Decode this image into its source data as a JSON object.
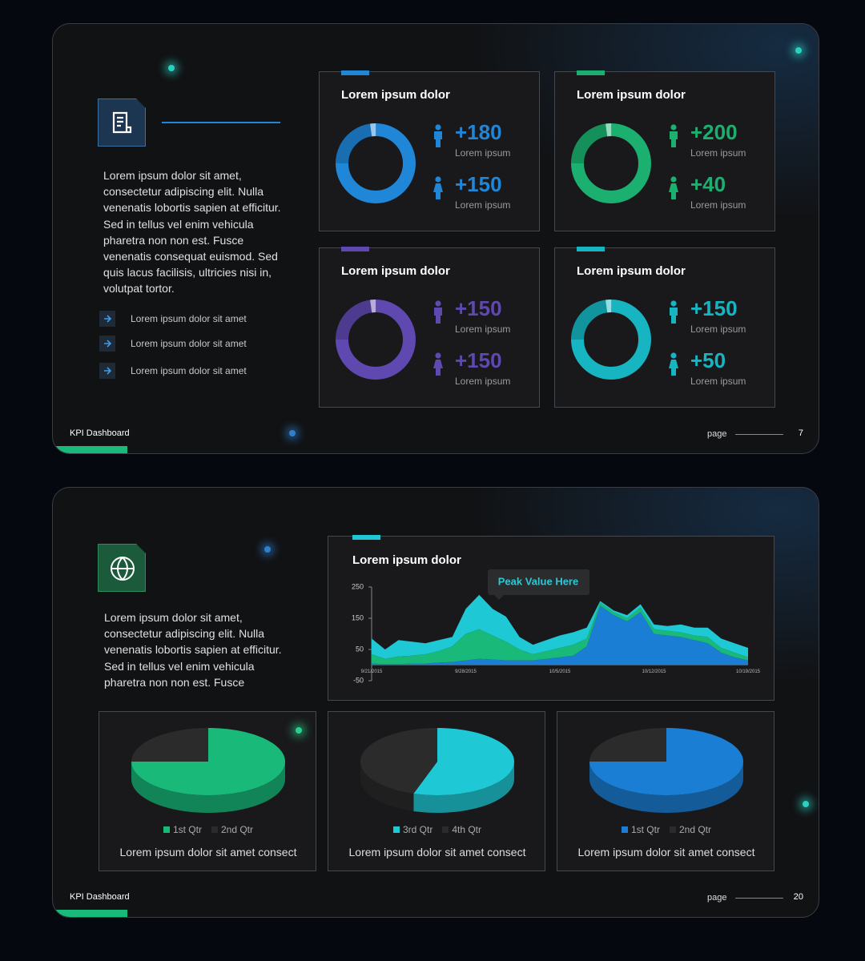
{
  "slides": [
    {
      "body": "Lorem ipsum dolor sit amet, consectetur adipiscing elit. Nulla venenatis lobortis sapien at efficitur. Sed in tellus vel enim vehicula pharetra non non est. Fusce venenatis consequat euismod. Sed quis lacus facilisis, ultricies nisi in, volutpat tortor.",
      "bullets": [
        "Lorem ipsum dolor sit amet",
        "Lorem ipsum dolor sit amet",
        "Lorem ipsum dolor sit amet"
      ],
      "cards": [
        {
          "title": "Lorem ipsum dolor",
          "color": "#1f86d8",
          "stats": [
            {
              "value": "+180",
              "label": "Lorem ipsum"
            },
            {
              "value": "+150",
              "label": "Lorem ipsum"
            }
          ]
        },
        {
          "title": "Lorem ipsum dolor",
          "color": "#1bb070",
          "stats": [
            {
              "value": "+200",
              "label": "Lorem ipsum"
            },
            {
              "value": "+40",
              "label": "Lorem ipsum"
            }
          ]
        },
        {
          "title": "Lorem ipsum dolor",
          "color": "#5f48b0",
          "stats": [
            {
              "value": "+150",
              "label": "Lorem ipsum"
            },
            {
              "value": "+150",
              "label": "Lorem ipsum"
            }
          ]
        },
        {
          "title": "Lorem ipsum dolor",
          "color": "#17b5c2",
          "stats": [
            {
              "value": "+150",
              "label": "Lorem ipsum"
            },
            {
              "value": "+50",
              "label": "Lorem ipsum"
            }
          ]
        }
      ],
      "footer": "KPI Dashboard",
      "page_label": "page",
      "page_number": 7
    },
    {
      "body": "Lorem ipsum dolor sit amet, consectetur adipiscing elit. Nulla venenatis lobortis sapien at efficitur. Sed in tellus vel enim vehicula pharetra non non est. Fusce",
      "footer": "KPI Dashboard",
      "page_label": "page",
      "page_number": 20
    }
  ],
  "chart_data": [
    {
      "type": "area",
      "title": "Lorem ipsum dolor",
      "annotation": "Peak Value Here",
      "stacked": true,
      "categories": [
        "9/21/2015",
        null,
        null,
        null,
        null,
        null,
        null,
        "9/28/2015",
        null,
        null,
        null,
        null,
        null,
        null,
        "10/5/2015",
        null,
        null,
        null,
        null,
        null,
        null,
        "10/12/2015",
        null,
        null,
        null,
        null,
        null,
        null,
        "10/19/2015"
      ],
      "series": [
        {
          "color": "#1a7fd4",
          "values": [
            5,
            3,
            3,
            5,
            5,
            8,
            10,
            15,
            20,
            18,
            15,
            15,
            15,
            20,
            25,
            30,
            60,
            190,
            160,
            140,
            170,
            100,
            95,
            90,
            80,
            70,
            40,
            25,
            15
          ]
        },
        {
          "color": "#19b97a",
          "values": [
            30,
            17,
            25,
            25,
            30,
            37,
            50,
            85,
            95,
            77,
            60,
            35,
            20,
            25,
            30,
            35,
            25,
            10,
            10,
            10,
            15,
            15,
            15,
            15,
            15,
            20,
            15,
            15,
            10
          ]
        },
        {
          "color": "#1ec8d4",
          "values": [
            50,
            30,
            52,
            45,
            35,
            35,
            30,
            80,
            110,
            85,
            80,
            40,
            30,
            35,
            40,
            40,
            35,
            5,
            5,
            10,
            10,
            15,
            15,
            25,
            25,
            30,
            30,
            30,
            30
          ]
        }
      ],
      "ylim": [
        -50,
        250
      ],
      "yticks": [
        -50,
        50,
        150,
        250
      ]
    },
    {
      "type": "pie",
      "categories": [
        "1st Qtr",
        "2nd Qtr"
      ],
      "values": [
        75,
        25
      ],
      "colors": [
        "#19b97a",
        "#2b2b2b"
      ],
      "caption": "Lorem ipsum dolor sit amet consect"
    },
    {
      "type": "pie",
      "categories": [
        "3rd Qtr",
        "4th Qtr"
      ],
      "values": [
        55,
        45
      ],
      "colors": [
        "#1ec8d4",
        "#2b2b2b"
      ],
      "caption": "Lorem ipsum dolor sit amet consect"
    },
    {
      "type": "pie",
      "categories": [
        "1st Qtr",
        "2nd Qtr"
      ],
      "values": [
        75,
        25
      ],
      "colors": [
        "#1a7fd4",
        "#2b2b2b"
      ],
      "caption": "Lorem ipsum dolor sit amet consect"
    }
  ]
}
